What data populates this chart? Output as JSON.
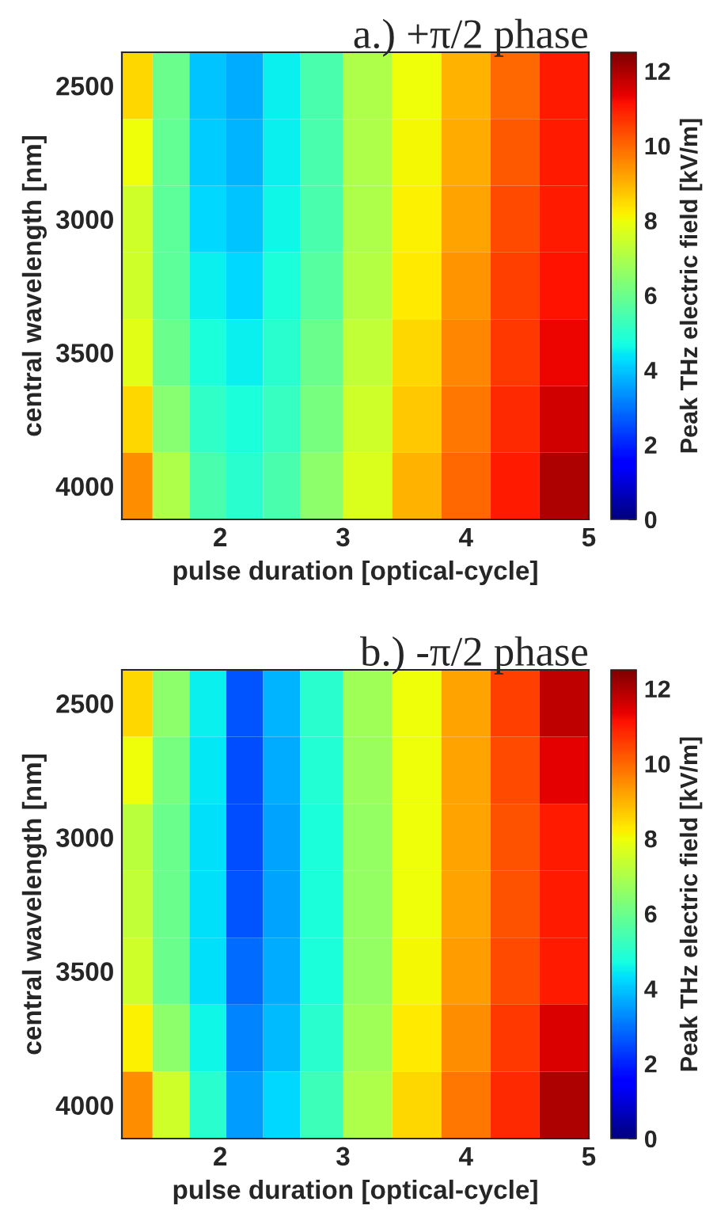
{
  "chart_data": [
    {
      "type": "heatmap",
      "title": "a.) +π/2 phase",
      "xlabel": "pulse duration [optical-cycle]",
      "ylabel": "central wavelength [nm]",
      "clabel": "Peak THz electric field [kV/m]",
      "x": [
        1.3,
        1.6,
        1.9,
        2.2,
        2.5,
        2.8,
        3.2,
        3.6,
        4.0,
        4.4,
        4.8
      ],
      "y_categories": [
        "2500",
        null,
        "3000",
        null,
        "3500",
        null,
        "4000"
      ],
      "cells": [
        [
          8.5,
          6,
          4,
          3.7,
          4.5,
          5.5,
          7,
          8,
          9,
          10,
          11
        ],
        [
          8,
          5.9,
          4.1,
          3.8,
          4.5,
          5.5,
          7,
          8.1,
          9.1,
          10.2,
          11
        ],
        [
          7.5,
          5.8,
          4.2,
          4,
          4.6,
          5.5,
          7,
          8.2,
          9.2,
          10.4,
          11
        ],
        [
          7.5,
          5.8,
          4.5,
          4.2,
          4.8,
          5.7,
          7.1,
          8.3,
          9.4,
          10.5,
          11.1
        ],
        [
          7.8,
          6,
          4.8,
          4.5,
          5,
          6,
          7.3,
          8.5,
          9.6,
          10.6,
          11.3
        ],
        [
          8.5,
          6.4,
          5.1,
          4.8,
          5.2,
          6.2,
          7.5,
          8.7,
          9.8,
          10.8,
          11.6
        ],
        [
          9.5,
          7,
          5.5,
          5,
          5.5,
          6.5,
          7.7,
          9,
          10,
          11,
          12
        ]
      ],
      "xlim": [
        1.2,
        5
      ],
      "xticks": [
        2,
        3,
        4,
        5
      ],
      "clim": [
        0,
        12.5
      ],
      "cticks": [
        0,
        2,
        4,
        6,
        8,
        10,
        12
      ]
    },
    {
      "type": "heatmap",
      "title": "b.) -π/2 phase",
      "xlabel": "pulse duration [optical-cycle]",
      "ylabel": "central wavelength [nm]",
      "clabel": "Peak THz electric field [kV/m]",
      "x": [
        1.3,
        1.6,
        1.9,
        2.2,
        2.5,
        2.8,
        3.2,
        3.6,
        4.0,
        4.4,
        4.8
      ],
      "y_categories": [
        "2500",
        null,
        "3000",
        null,
        "3500",
        null,
        "4000"
      ],
      "cells": [
        [
          8.5,
          6.5,
          4.5,
          2.6,
          3.8,
          5,
          6.8,
          8,
          9.2,
          10.5,
          11.8
        ],
        [
          8,
          6.2,
          4.4,
          2.5,
          3.7,
          4.9,
          6.7,
          8,
          9.2,
          10.4,
          11.4
        ],
        [
          7.2,
          6,
          4.3,
          2.5,
          3.6,
          4.8,
          6.6,
          8,
          9.2,
          10.3,
          11
        ],
        [
          7.3,
          6,
          4.3,
          2.6,
          3.6,
          4.8,
          6.6,
          8,
          9.2,
          10.3,
          11
        ],
        [
          7.5,
          6,
          4.3,
          2.9,
          3.7,
          4.8,
          6.6,
          8.1,
          9.3,
          10.4,
          11
        ],
        [
          8.2,
          6.5,
          4.6,
          3.2,
          3.9,
          5,
          6.8,
          8.3,
          9.5,
          10.6,
          11.5
        ],
        [
          9.5,
          7.5,
          5,
          3.5,
          4.2,
          5.3,
          7,
          8.5,
          9.8,
          10.8,
          12
        ]
      ],
      "xlim": [
        1.2,
        5
      ],
      "xticks": [
        2,
        3,
        4,
        5
      ],
      "clim": [
        0,
        12.5
      ],
      "cticks": [
        0,
        2,
        4,
        6,
        8,
        10,
        12
      ]
    }
  ]
}
